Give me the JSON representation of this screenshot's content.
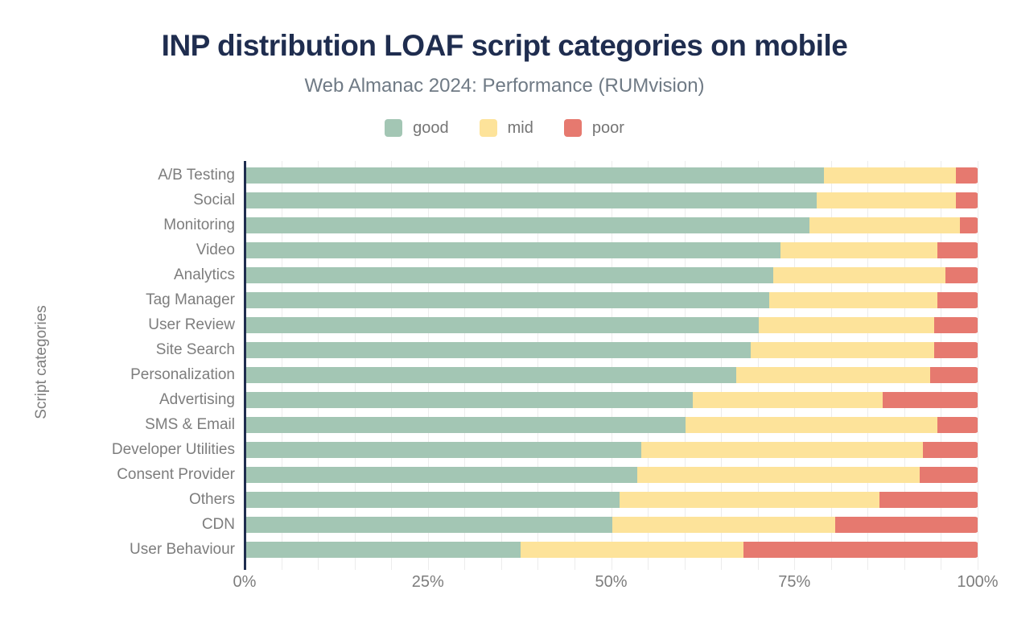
{
  "header": {
    "title": "INP distribution LOAF script categories on mobile",
    "subtitle": "Web Almanac 2024: Performance (RUMvision)"
  },
  "legend": {
    "items": [
      {
        "label": "good",
        "color": "#a3c6b4"
      },
      {
        "label": "mid",
        "color": "#fde39a"
      },
      {
        "label": "poor",
        "color": "#e6796f"
      }
    ]
  },
  "axes": {
    "y_label": "Script categories",
    "x_ticks": [
      "0%",
      "25%",
      "50%",
      "75%",
      "100%"
    ]
  },
  "colors": {
    "title": "#1f2d4f",
    "subtitle": "#6f7a85",
    "axis_text": "#7d7d7d",
    "axis_line": "#1f2d4f",
    "gridline": "#ececec",
    "background": "#ffffff",
    "good": "#a3c6b4",
    "mid": "#fde39a",
    "poor": "#e6796f"
  },
  "chart_data": {
    "type": "bar",
    "orientation": "horizontal",
    "stacked": true,
    "units": "%",
    "title": "INP distribution LOAF script categories on mobile",
    "subtitle": "Web Almanac 2024: Performance (RUMvision)",
    "xlabel": "",
    "ylabel": "Script categories",
    "xlim": [
      0,
      100
    ],
    "x_tick_labels": [
      "0%",
      "25%",
      "50%",
      "75%",
      "100%"
    ],
    "grid": "faint vertical gridlines every 5%",
    "legend_position": "top",
    "categories": [
      "A/B Testing",
      "Social",
      "Monitoring",
      "Video",
      "Analytics",
      "Tag Manager",
      "User Review",
      "Site Search",
      "Personalization",
      "Advertising",
      "SMS & Email",
      "Developer Utilities",
      "Consent Provider",
      "Others",
      "CDN",
      "User Behaviour"
    ],
    "series": [
      {
        "name": "good",
        "color": "#a3c6b4",
        "values": [
          79,
          78,
          77,
          73,
          72,
          71.5,
          70,
          69,
          67,
          61,
          60,
          54,
          53.5,
          51,
          50,
          37.5
        ]
      },
      {
        "name": "mid",
        "color": "#fde39a",
        "values": [
          18,
          19,
          20.5,
          21.5,
          23.5,
          23,
          24,
          25,
          26.5,
          26,
          34.5,
          38.5,
          38.5,
          35.5,
          30.5,
          30.5
        ]
      },
      {
        "name": "poor",
        "color": "#e6796f",
        "values": [
          3,
          3,
          2.5,
          5.5,
          4.5,
          5.5,
          6,
          6,
          6.5,
          13,
          5.5,
          7.5,
          8,
          13.5,
          19.5,
          32
        ]
      }
    ]
  }
}
